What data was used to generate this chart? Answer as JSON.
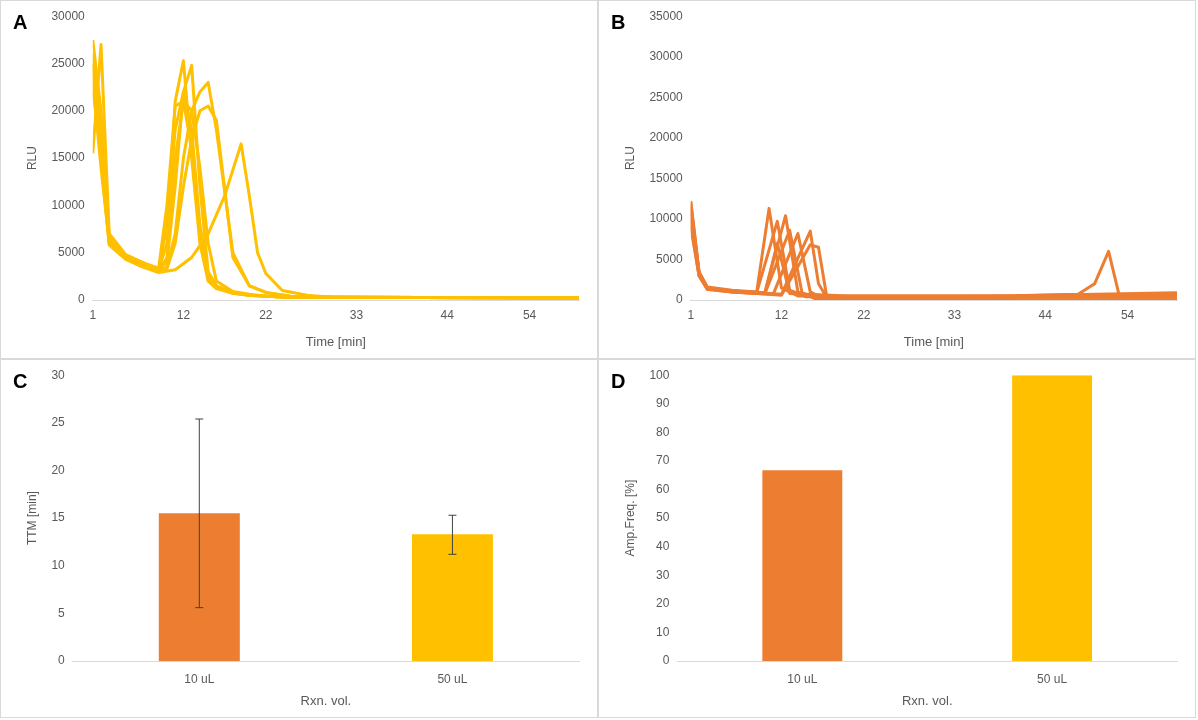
{
  "chart_data": [
    {
      "type": "line",
      "annotations": [
        "A"
      ],
      "xlabel": "Time [min]",
      "ylabel": "RLU",
      "xlim": [
        1,
        60
      ],
      "xticks": [
        1,
        12,
        22,
        33,
        44,
        54
      ],
      "ylim": [
        0,
        30000
      ],
      "yticks": [
        0,
        5000,
        10000,
        15000,
        20000,
        25000,
        30000
      ],
      "series": [
        {
          "color": "#ffc000",
          "x": [
            1,
            2,
            3,
            5,
            7,
            9,
            10,
            11,
            12,
            13,
            14,
            15,
            16,
            18,
            20,
            22,
            25,
            30,
            60
          ],
          "values": [
            27500,
            20000,
            6000,
            4500,
            3800,
            3200,
            6000,
            21000,
            25300,
            15000,
            6000,
            2000,
            1200,
            700,
            500,
            400,
            300,
            300,
            200
          ]
        },
        {
          "color": "#ffc000",
          "x": [
            1,
            2,
            3,
            5,
            7,
            9,
            10,
            11,
            12,
            13,
            14,
            15,
            16,
            18,
            20,
            22,
            25,
            30,
            60
          ],
          "values": [
            15500,
            27000,
            7000,
            4800,
            4000,
            3300,
            4000,
            12000,
            22000,
            24800,
            12000,
            3000,
            1500,
            800,
            500,
            400,
            300,
            300,
            200
          ]
        },
        {
          "color": "#ffc000",
          "x": [
            1,
            2,
            3,
            5,
            7,
            9,
            10,
            11,
            12,
            13,
            14,
            15,
            16,
            18,
            20,
            22,
            25,
            30,
            60
          ],
          "values": [
            25000,
            18000,
            6500,
            4600,
            3800,
            3100,
            3500,
            7000,
            15000,
            20000,
            22000,
            23000,
            18000,
            5000,
            1500,
            800,
            400,
            300,
            200
          ]
        },
        {
          "color": "#ffc000",
          "x": [
            1,
            2,
            3,
            5,
            7,
            9,
            10,
            11,
            12,
            13,
            14,
            15,
            16,
            18,
            20,
            22,
            25,
            30,
            60
          ],
          "values": [
            26000,
            16000,
            6200,
            4400,
            3600,
            3000,
            4500,
            15000,
            21000,
            20000,
            14000,
            6000,
            2000,
            900,
            600,
            400,
            300,
            300,
            200
          ]
        },
        {
          "color": "#ffc000",
          "x": [
            1,
            2,
            3,
            5,
            7,
            9,
            11,
            13,
            15,
            17,
            19,
            20,
            21,
            22,
            24,
            27,
            30,
            60
          ],
          "values": [
            24000,
            15000,
            5800,
            4300,
            3500,
            2900,
            3200,
            4500,
            7000,
            11000,
            16500,
            11000,
            5000,
            2800,
            1000,
            500,
            300,
            200
          ]
        },
        {
          "color": "#ffc000",
          "x": [
            1,
            2,
            3,
            5,
            7,
            9,
            10,
            11,
            12,
            13,
            14,
            15,
            16,
            18,
            20,
            22,
            25,
            30,
            60
          ],
          "values": [
            23000,
            14000,
            6000,
            4500,
            3700,
            3100,
            3300,
            6000,
            12000,
            17000,
            20000,
            20500,
            19000,
            4500,
            1500,
            800,
            400,
            300,
            200
          ]
        },
        {
          "color": "#ffc000",
          "x": [
            1,
            2,
            3,
            5,
            7,
            9,
            10,
            11,
            12,
            13,
            14,
            15,
            16,
            18,
            20,
            22,
            25,
            30,
            60
          ],
          "values": [
            22000,
            17000,
            6300,
            4700,
            3900,
            3200,
            8000,
            18000,
            22000,
            18000,
            8000,
            2500,
            1300,
            700,
            500,
            400,
            300,
            300,
            200
          ]
        },
        {
          "color": "#ffc000",
          "x": [
            1,
            2,
            3,
            5,
            7,
            9,
            10,
            11,
            12,
            13,
            14,
            15,
            16,
            18,
            20,
            22,
            25,
            30,
            60
          ],
          "values": [
            25000,
            15000,
            6000,
            4600,
            3900,
            3400,
            10000,
            20500,
            21000,
            16000,
            7000,
            2500,
            1400,
            800,
            500,
            400,
            300,
            300,
            200
          ]
        }
      ]
    },
    {
      "type": "line",
      "annotations": [
        "B"
      ],
      "xlabel": "Time [min]",
      "ylabel": "RLU",
      "xlim": [
        1,
        60
      ],
      "xticks": [
        1,
        12,
        22,
        33,
        44,
        54
      ],
      "ylim": [
        0,
        35000
      ],
      "yticks": [
        0,
        5000,
        10000,
        15000,
        20000,
        25000,
        30000,
        35000
      ],
      "series": [
        {
          "color": "#ed7d31",
          "x": [
            1,
            2,
            3,
            6,
            9,
            10.5,
            12,
            14,
            20,
            40,
            60
          ],
          "values": [
            12000,
            3500,
            1600,
            1200,
            1000,
            11300,
            1500,
            500,
            500,
            500,
            900
          ]
        },
        {
          "color": "#ed7d31",
          "x": [
            1,
            2,
            3,
            6,
            9,
            11.5,
            13,
            15,
            20,
            40,
            60
          ],
          "values": [
            11000,
            3300,
            1500,
            1100,
            900,
            9700,
            1200,
            400,
            400,
            400,
            800
          ]
        },
        {
          "color": "#ed7d31",
          "x": [
            1,
            2,
            3,
            6,
            10,
            12.5,
            14,
            16,
            20,
            40,
            60
          ],
          "values": [
            10000,
            3200,
            1400,
            1100,
            900,
            10400,
            1000,
            300,
            300,
            300,
            300
          ]
        },
        {
          "color": "#ed7d31",
          "x": [
            1,
            2,
            3,
            6,
            10,
            13,
            14.5,
            16,
            20,
            40,
            60
          ],
          "values": [
            9500,
            3000,
            1400,
            1000,
            800,
            8600,
            900,
            200,
            200,
            200,
            100
          ]
        },
        {
          "color": "#ed7d31",
          "x": [
            1,
            2,
            3,
            6,
            11,
            14,
            15.5,
            17,
            25,
            40,
            60
          ],
          "values": [
            9000,
            3000,
            1300,
            1000,
            700,
            8200,
            1000,
            200,
            100,
            100,
            100
          ]
        },
        {
          "color": "#ed7d31",
          "x": [
            1,
            2,
            3,
            6,
            12,
            15.5,
            16.5,
            17.5,
            25,
            40,
            60
          ],
          "values": [
            12200,
            3400,
            1500,
            1100,
            700,
            8500,
            2000,
            300,
            300,
            300,
            300
          ]
        },
        {
          "color": "#ed7d31",
          "x": [
            1,
            2,
            3,
            6,
            12,
            15.5,
            16.5,
            17.5,
            30,
            40,
            60
          ],
          "values": [
            10500,
            3300,
            1500,
            1000,
            600,
            6800,
            6500,
            400,
            400,
            500,
            700
          ]
        },
        {
          "color": "#ed7d31",
          "x": [
            1,
            2,
            3,
            6,
            10,
            11.5,
            13,
            20,
            40,
            48,
            50,
            51.7,
            53,
            60
          ],
          "values": [
            11500,
            3400,
            1500,
            1100,
            900,
            7000,
            800,
            500,
            500,
            700,
            2000,
            6000,
            500,
            500
          ]
        }
      ]
    },
    {
      "type": "bar",
      "annotations": [
        "C"
      ],
      "xlabel": "Rxn. vol.",
      "ylabel": "TTM [min]",
      "categories": [
        "10 uL",
        "50 uL"
      ],
      "ylim": [
        0,
        30
      ],
      "yticks": [
        0,
        5,
        10,
        15,
        20,
        25,
        30
      ],
      "values": [
        15.5,
        13.3
      ],
      "colors": [
        "#ed7d31",
        "#ffc000"
      ],
      "errors": [
        [
          5.6,
          25.4
        ],
        [
          11.2,
          15.3
        ]
      ]
    },
    {
      "type": "bar",
      "annotations": [
        "D"
      ],
      "xlabel": "Rxn. vol.",
      "ylabel": "Amp.Freq. [%]",
      "categories": [
        "10 uL",
        "50 uL"
      ],
      "ylim": [
        0,
        100
      ],
      "yticks": [
        0,
        10,
        20,
        30,
        40,
        50,
        60,
        70,
        80,
        90,
        100
      ],
      "values": [
        66.7,
        100
      ],
      "colors": [
        "#ed7d31",
        "#ffc000"
      ]
    }
  ]
}
